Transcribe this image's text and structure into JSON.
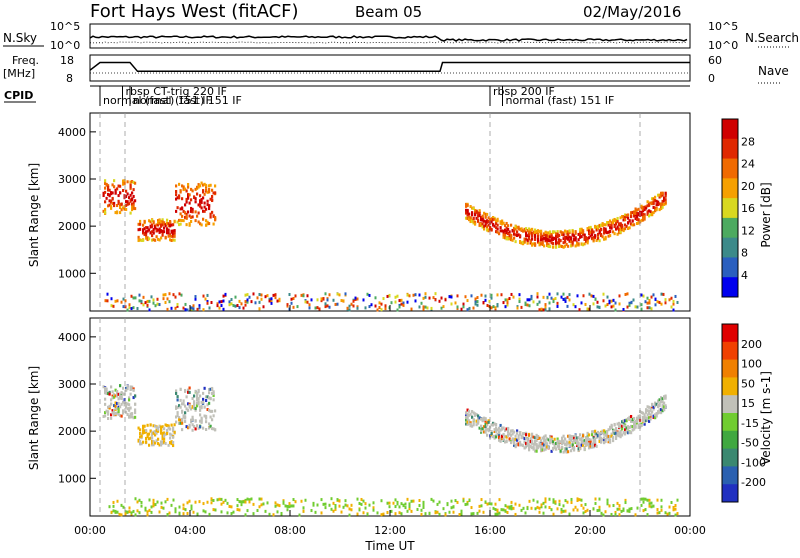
{
  "header": {
    "station": "Fort Hays West (fitACF)",
    "beam": "Beam 05",
    "date": "02/May/2016"
  },
  "top_panels": {
    "nsky_label": "N.Sky",
    "nsky_ticks": [
      "10^5",
      "10^0"
    ],
    "nsearch_label": "N.Search",
    "nsearch_ticks": [
      "10^5",
      "10^0"
    ],
    "freq_label_1": "Freq.",
    "freq_label_2": "[MHz]",
    "freq_ticks": [
      "18",
      "8"
    ],
    "nave_label": "Nave",
    "nave_ticks": [
      "60",
      "0"
    ],
    "cpid_label": "CPID",
    "cpid_entries": [
      {
        "label": "rbsp CT-trig 220 IF",
        "start": 1.3,
        "end": 5.0,
        "row": 0
      },
      {
        "label": "normal (fast) 151 IF",
        "start": 0.4,
        "end": 1.4,
        "row": 1
      },
      {
        "label": "normal (fast) 151 IF",
        "start": 1.6,
        "end": 5.0,
        "row": 1
      },
      {
        "label": "rbsp 200 IF",
        "start": 16.0,
        "end": 19.0,
        "row": 0
      },
      {
        "label": "normal (fast) 151 IF",
        "start": 16.5,
        "end": 21.8,
        "row": 1
      }
    ]
  },
  "axes": {
    "y_label": "Slant Range [km]",
    "y_ticks": [
      "1000",
      "2000",
      "3000",
      "4000"
    ],
    "x_label": "Time UT",
    "x_ticks": [
      "00:00",
      "04:00",
      "08:00",
      "12:00",
      "16:00",
      "20:00",
      "00:00"
    ]
  },
  "power_bar": {
    "label": "Power [dB]",
    "ticks": [
      "4",
      "8",
      "12",
      "16",
      "20",
      "24",
      "28"
    ],
    "colors": [
      "#0000ee",
      "#2a5fbf",
      "#3c8a8a",
      "#4caa60",
      "#d8d820",
      "#f6a000",
      "#f06a00",
      "#e02800",
      "#d00000"
    ]
  },
  "velocity_bar": {
    "label": "Velocity [m s-1]",
    "ticks": [
      "200",
      "100",
      "50",
      "15",
      "-15",
      "-50",
      "-100",
      "-200"
    ],
    "colors": [
      "#2030c0",
      "#2a60b0",
      "#3a8870",
      "#40a840",
      "#70cc30",
      "#c0c0b8",
      "#f0b000",
      "#f08000",
      "#f04000",
      "#e00000"
    ]
  },
  "chart_data": {
    "type": "heatmap",
    "xlim": [
      0,
      24
    ],
    "ylim": [
      200,
      4400
    ],
    "cpid_change_times": [
      0.4,
      1.4,
      16.0,
      22.0
    ],
    "freq_series": [
      [
        0,
        12
      ],
      [
        0.4,
        15.5
      ],
      [
        1.6,
        15.5
      ],
      [
        1.9,
        11.5
      ],
      [
        14.0,
        11.5
      ],
      [
        14.1,
        15.5
      ],
      [
        24,
        15.5
      ]
    ],
    "echo_regions": [
      {
        "t_start": 0.5,
        "t_end": 1.8,
        "r_center": 2650,
        "r_width": 700
      },
      {
        "t_start": 1.9,
        "t_end": 3.4,
        "r_center": 1950,
        "r_width": 450
      },
      {
        "t_start": 3.4,
        "t_end": 5.0,
        "r_center": 2500,
        "r_width": 900
      },
      {
        "t_start": 15.0,
        "t_end": 23.0,
        "r_center": 1950,
        "r_width": 350
      }
    ]
  }
}
